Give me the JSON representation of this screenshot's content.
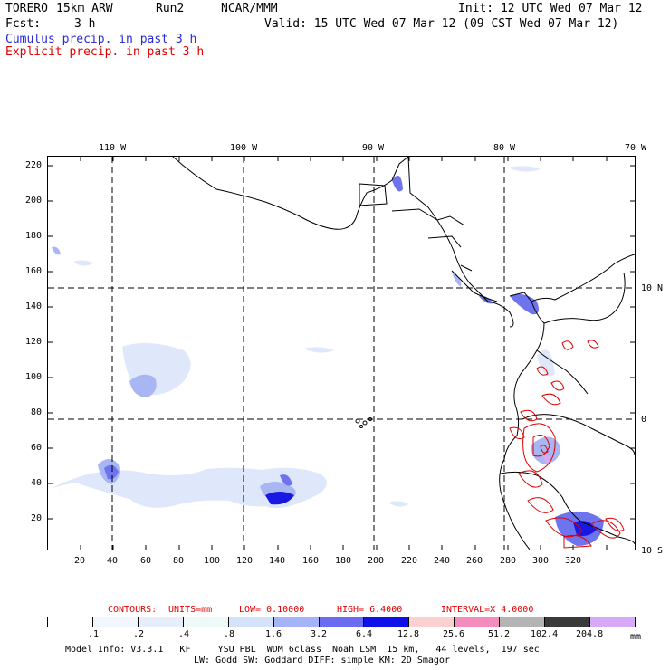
{
  "header": {
    "model": "TORERO",
    "resolution": "15km ARW",
    "run": "Run2",
    "org": "NCAR/MMM",
    "init": "Init: 12 UTC Wed 07 Mar 12",
    "fcst_label": "Fcst:",
    "fcst_value": "3 h",
    "valid": "Valid: 15 UTC Wed 07 Mar 12 (09 CST Wed 07 Mar 12)",
    "cumulus": "Cumulus precip. in past 3 h",
    "explicit": "Explicit precip. in past 3 h"
  },
  "colors": {
    "cumulus_text": "#2a2ad6",
    "explicit_text": "#e00000",
    "contour": "#e00000"
  },
  "axes": {
    "lon_labels": [
      "110 W",
      "100 W",
      "90 W",
      "80 W",
      "70 W"
    ],
    "lat_labels": [
      "10 N",
      "0",
      "10 S"
    ],
    "x_ticks": [
      "20",
      "40",
      "60",
      "80",
      "100",
      "120",
      "140",
      "160",
      "180",
      "200",
      "220",
      "240",
      "260",
      "280",
      "300",
      "320"
    ],
    "y_ticks": [
      "220",
      "200",
      "180",
      "160",
      "140",
      "120",
      "100",
      "80",
      "60",
      "40",
      "20"
    ]
  },
  "contours_line": {
    "label": "CONTOURS:",
    "units": "UNITS=mm",
    "low": "LOW= 0.10000",
    "high": "HIGH= 6.4000",
    "interval": "INTERVAL=X 4.0000"
  },
  "colorbar": {
    "labels": [
      ".1",
      ".2",
      ".4",
      ".8",
      "1.6",
      "3.2",
      "6.4",
      "12.8",
      "25.6",
      "51.2",
      "102.4",
      "204.8"
    ],
    "unit": "mm",
    "colors": [
      "#ffffff",
      "#f2f6ff",
      "#e6eefc",
      "#eefaf8",
      "#d4e2fa",
      "#a4b4f6",
      "#6c6cf0",
      "#1010e8",
      "#fbd0d0",
      "#f58cbe",
      "#b4b4b4",
      "#3a3a3a",
      "#d6aaf6"
    ]
  },
  "footer": {
    "line1": "Model Info: V3.3.1   KF     YSU PBL  WDM 6class  Noah LSM  15 km,   44 levels,  197 sec",
    "line2": "LW: Godd SW: Goddard DIFF: simple KM: 2D Smagor"
  }
}
